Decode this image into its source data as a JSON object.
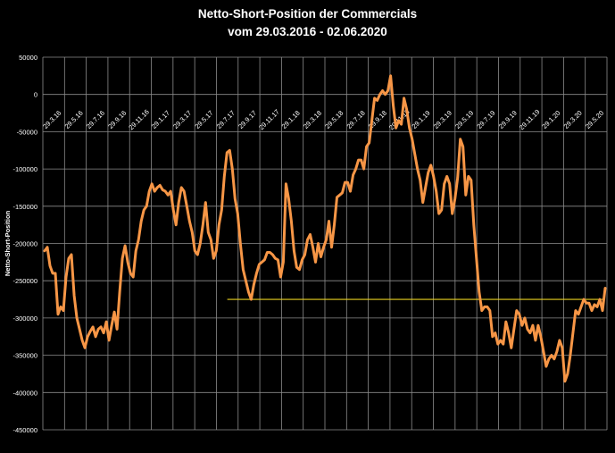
{
  "chart_data": {
    "type": "line",
    "title": "Netto-Short-Position der Commercials",
    "subtitle": "vom 29.03.2016 - 02.06.2020",
    "xlabel": "",
    "ylabel": "Netto-Short-Position",
    "ylim": [
      -450000,
      50000
    ],
    "yticks": [
      50000,
      0,
      -50000,
      -100000,
      -150000,
      -200000,
      -250000,
      -300000,
      -350000,
      -400000,
      -450000
    ],
    "ytick_labels": [
      "50000",
      "0",
      "-50000",
      "-100000",
      "-150000",
      "-200000",
      "-250000",
      "-300000",
      "-350000",
      "-400000",
      "-450000"
    ],
    "x_tick_labels": [
      "29.3.16",
      "29.5.16",
      "29.7.16",
      "29.9.16",
      "29.11.16",
      "29.1.17",
      "29.3.17",
      "29.5.17",
      "29.7.17",
      "29.9.17",
      "29.11.17",
      "29.1.18",
      "29.3.18",
      "29.5.18",
      "29.7.18",
      "29.9.18",
      "29.11.18",
      "29.1.19",
      "29.3.19",
      "29.5.19",
      "29.7.19",
      "29.9.19",
      "29.11.19",
      "29.1.20",
      "29.3.20",
      "29.5.20"
    ],
    "grid": true,
    "legend": "none",
    "colors": {
      "series": "#F79646",
      "reference": "#E8D020",
      "grid": "#8C8C8C",
      "background": "#000000",
      "text": "#FFFFFF"
    },
    "series": [
      {
        "name": "Netto-Short-Position",
        "x_start": "29.3.16",
        "x_step_weeks": 1,
        "values": [
          -210000,
          -205000,
          -230000,
          -240000,
          -240000,
          -295000,
          -285000,
          -290000,
          -245000,
          -220000,
          -215000,
          -270000,
          -300000,
          -315000,
          -330000,
          -340000,
          -325000,
          -318000,
          -312000,
          -325000,
          -315000,
          -312000,
          -320000,
          -305000,
          -330000,
          -310000,
          -292000,
          -315000,
          -265000,
          -220000,
          -203000,
          -225000,
          -240000,
          -245000,
          -210000,
          -195000,
          -170000,
          -155000,
          -150000,
          -130000,
          -120000,
          -130000,
          -125000,
          -122000,
          -128000,
          -130000,
          -135000,
          -130000,
          -155000,
          -175000,
          -145000,
          -125000,
          -130000,
          -150000,
          -170000,
          -185000,
          -210000,
          -215000,
          -200000,
          -175000,
          -145000,
          -185000,
          -195000,
          -220000,
          -210000,
          -175000,
          -155000,
          -110000,
          -78000,
          -75000,
          -100000,
          -140000,
          -160000,
          -200000,
          -235000,
          -250000,
          -265000,
          -275000,
          -255000,
          -240000,
          -228000,
          -225000,
          -222000,
          -212000,
          -212000,
          -215000,
          -220000,
          -222000,
          -245000,
          -225000,
          -120000,
          -140000,
          -170000,
          -210000,
          -232000,
          -235000,
          -222000,
          -215000,
          -195000,
          -188000,
          -205000,
          -225000,
          -200000,
          -218000,
          -205000,
          -195000,
          -170000,
          -205000,
          -175000,
          -138000,
          -135000,
          -132000,
          -118000,
          -118000,
          -130000,
          -108000,
          -100000,
          -88000,
          -88000,
          -100000,
          -70000,
          -65000,
          -35000,
          -5000,
          -8000,
          0,
          5000,
          0,
          5000,
          25000,
          -15000,
          -45000,
          -35000,
          -40000,
          -5000,
          -20000,
          -45000,
          -60000,
          -80000,
          -100000,
          -115000,
          -145000,
          -125000,
          -105000,
          -95000,
          -110000,
          -130000,
          -160000,
          -155000,
          -120000,
          -110000,
          -120000,
          -160000,
          -140000,
          -112000,
          -60000,
          -70000,
          -135000,
          -110000,
          -115000,
          -175000,
          -220000,
          -265000,
          -290000,
          -285000,
          -285000,
          -290000,
          -325000,
          -320000,
          -335000,
          -330000,
          -335000,
          -305000,
          -320000,
          -340000,
          -315000,
          -290000,
          -295000,
          -310000,
          -300000,
          -315000,
          -320000,
          -310000,
          -330000,
          -310000,
          -325000,
          -345000,
          -365000,
          -355000,
          -350000,
          -355000,
          -345000,
          -330000,
          -340000,
          -385000,
          -375000,
          -350000,
          -320000,
          -290000,
          -295000,
          -285000,
          -275000,
          -280000,
          -280000,
          -290000,
          -282000,
          -285000,
          -275000,
          -290000,
          -260000
        ]
      }
    ],
    "reference_line": {
      "value": -275000,
      "from": "29.7.17",
      "to": "02.06.2020"
    }
  }
}
